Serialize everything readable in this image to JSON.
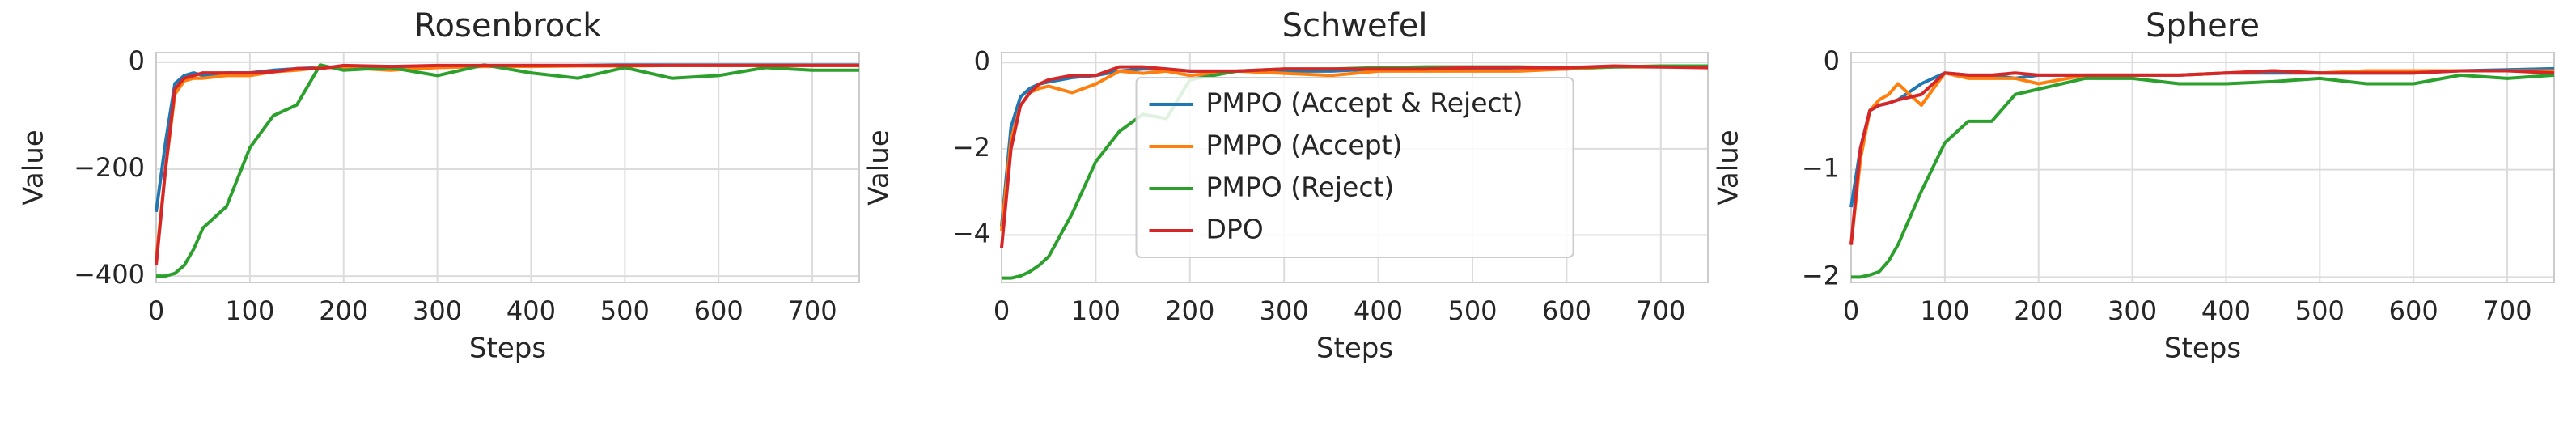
{
  "chart_data": [
    {
      "type": "line",
      "title": "Rosenbrock",
      "x_label": "Steps",
      "y_label": "Value",
      "grid": true,
      "xlim": [
        0,
        750
      ],
      "ylim": [
        -412,
        18
      ],
      "xticks": [
        0,
        100,
        200,
        300,
        400,
        500,
        600,
        700
      ],
      "yticks": [
        {
          "value": -400,
          "label": "−400"
        },
        {
          "value": -200,
          "label": "−200"
        },
        0
      ],
      "x": [
        0,
        10,
        20,
        30,
        40,
        50,
        75,
        100,
        125,
        150,
        175,
        200,
        250,
        300,
        350,
        400,
        450,
        500,
        550,
        600,
        650,
        700,
        750
      ],
      "series": [
        {
          "name": "PMPO (Accept & Reject)",
          "color": "#1f77b4",
          "values": [
            -280,
            -150,
            -40,
            -25,
            -20,
            -25,
            -20,
            -20,
            -15,
            -12,
            -10,
            -8,
            -8,
            -7,
            -6,
            -6,
            -6,
            -5,
            -5,
            -5,
            -5,
            -5,
            -5
          ]
        },
        {
          "name": "PMPO (Accept)",
          "color": "#ff7f0e",
          "values": [
            -370,
            -200,
            -60,
            -35,
            -30,
            -30,
            -25,
            -25,
            -18,
            -15,
            -10,
            -10,
            -15,
            -10,
            -8,
            -8,
            -7,
            -7,
            -6,
            -6,
            -6,
            -6,
            -6
          ]
        },
        {
          "name": "PMPO (Reject)",
          "color": "#2ca02c",
          "values": [
            -400,
            -400,
            -395,
            -380,
            -350,
            -310,
            -270,
            -160,
            -100,
            -80,
            -5,
            -15,
            -10,
            -25,
            -5,
            -20,
            -30,
            -10,
            -30,
            -25,
            -10,
            -15,
            -15
          ]
        },
        {
          "name": "DPO",
          "color": "#d62728",
          "values": [
            -380,
            -200,
            -50,
            -30,
            -25,
            -20,
            -20,
            -20,
            -18,
            -12,
            -12,
            -6,
            -8,
            -6,
            -6,
            -6,
            -6,
            -6,
            -6,
            -6,
            -6,
            -6,
            -6
          ]
        }
      ]
    },
    {
      "type": "line",
      "title": "Schwefel",
      "x_label": "Steps",
      "y_label": "Value",
      "grid": true,
      "legend": "center",
      "xlim": [
        0,
        750
      ],
      "ylim": [
        -5.1,
        0.23
      ],
      "xticks": [
        0,
        100,
        200,
        300,
        400,
        500,
        600,
        700
      ],
      "yticks": [
        {
          "value": -4,
          "label": "−4"
        },
        {
          "value": -2,
          "label": "−2"
        },
        0
      ],
      "x": [
        0,
        10,
        20,
        30,
        40,
        50,
        75,
        100,
        125,
        150,
        175,
        200,
        250,
        300,
        350,
        400,
        450,
        500,
        550,
        600,
        650,
        700,
        750
      ],
      "series": [
        {
          "name": "PMPO (Accept & Reject)",
          "color": "#1f77b4",
          "values": [
            -3.8,
            -1.5,
            -0.8,
            -0.6,
            -0.5,
            -0.45,
            -0.35,
            -0.3,
            -0.2,
            -0.15,
            -0.15,
            -0.2,
            -0.2,
            -0.2,
            -0.2,
            -0.15,
            -0.15,
            -0.15,
            -0.12,
            -0.15,
            -0.1,
            -0.1,
            -0.1
          ]
        },
        {
          "name": "PMPO (Accept)",
          "color": "#ff7f0e",
          "values": [
            -3.9,
            -1.8,
            -1.0,
            -0.7,
            -0.6,
            -0.55,
            -0.7,
            -0.5,
            -0.2,
            -0.25,
            -0.2,
            -0.3,
            -0.2,
            -0.25,
            -0.3,
            -0.2,
            -0.2,
            -0.2,
            -0.2,
            -0.15,
            -0.1,
            -0.1,
            -0.1
          ]
        },
        {
          "name": "PMPO (Reject)",
          "color": "#2ca02c",
          "values": [
            -5.0,
            -5.0,
            -4.95,
            -4.85,
            -4.7,
            -4.5,
            -3.5,
            -2.3,
            -1.6,
            -1.2,
            -1.3,
            -0.4,
            -0.2,
            -0.15,
            -0.15,
            -0.12,
            -0.1,
            -0.1,
            -0.1,
            -0.12,
            -0.1,
            -0.08,
            -0.08
          ]
        },
        {
          "name": "DPO",
          "color": "#d62728",
          "values": [
            -4.3,
            -2.0,
            -1.0,
            -0.7,
            -0.5,
            -0.4,
            -0.3,
            -0.3,
            -0.1,
            -0.1,
            -0.15,
            -0.2,
            -0.2,
            -0.15,
            -0.15,
            -0.15,
            -0.15,
            -0.12,
            -0.12,
            -0.12,
            -0.08,
            -0.1,
            -0.12
          ]
        }
      ]
    },
    {
      "type": "line",
      "title": "Sphere",
      "x_label": "Steps",
      "y_label": "Value",
      "grid": true,
      "xlim": [
        0,
        750
      ],
      "ylim": [
        -2.05,
        0.09
      ],
      "xticks": [
        0,
        100,
        200,
        300,
        400,
        500,
        600,
        700
      ],
      "yticks": [
        {
          "value": -2,
          "label": "−2"
        },
        {
          "value": -1,
          "label": "−1"
        },
        0
      ],
      "x": [
        0,
        10,
        20,
        30,
        40,
        50,
        75,
        100,
        125,
        150,
        175,
        200,
        250,
        300,
        350,
        400,
        450,
        500,
        550,
        600,
        650,
        700,
        750
      ],
      "series": [
        {
          "name": "PMPO (Accept & Reject)",
          "color": "#1f77b4",
          "values": [
            -1.35,
            -0.8,
            -0.45,
            -0.4,
            -0.38,
            -0.35,
            -0.2,
            -0.1,
            -0.12,
            -0.12,
            -0.15,
            -0.12,
            -0.12,
            -0.12,
            -0.12,
            -0.1,
            -0.1,
            -0.1,
            -0.1,
            -0.1,
            -0.08,
            -0.07,
            -0.06
          ]
        },
        {
          "name": "PMPO (Accept)",
          "color": "#ff7f0e",
          "values": [
            -1.7,
            -0.9,
            -0.45,
            -0.35,
            -0.3,
            -0.2,
            -0.4,
            -0.1,
            -0.15,
            -0.15,
            -0.15,
            -0.2,
            -0.12,
            -0.12,
            -0.12,
            -0.1,
            -0.08,
            -0.1,
            -0.08,
            -0.08,
            -0.08,
            -0.08,
            -0.08
          ]
        },
        {
          "name": "PMPO (Reject)",
          "color": "#2ca02c",
          "values": [
            -2.0,
            -2.0,
            -1.98,
            -1.95,
            -1.85,
            -1.7,
            -1.2,
            -0.75,
            -0.55,
            -0.55,
            -0.3,
            -0.25,
            -0.15,
            -0.15,
            -0.2,
            -0.2,
            -0.18,
            -0.15,
            -0.2,
            -0.2,
            -0.12,
            -0.15,
            -0.12
          ]
        },
        {
          "name": "DPO",
          "color": "#d62728",
          "values": [
            -1.7,
            -0.8,
            -0.45,
            -0.4,
            -0.38,
            -0.35,
            -0.3,
            -0.1,
            -0.12,
            -0.12,
            -0.1,
            -0.12,
            -0.12,
            -0.12,
            -0.12,
            -0.1,
            -0.08,
            -0.1,
            -0.1,
            -0.1,
            -0.08,
            -0.08,
            -0.1
          ]
        }
      ]
    }
  ]
}
